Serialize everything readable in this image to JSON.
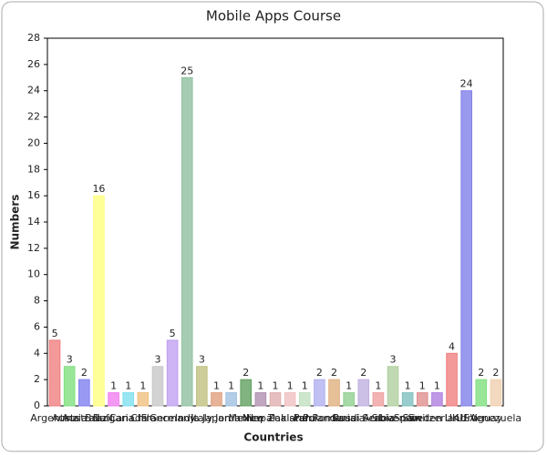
{
  "chart_data": {
    "type": "bar",
    "title": "Mobile Apps Course",
    "x_label": "Countries",
    "y_label": "Numbers",
    "categories": [
      "Argentina",
      "Austria",
      "Australia",
      "Brazil",
      "Bulgaria",
      "Canada",
      "Chile",
      "France",
      "Germany",
      "India",
      "Italy",
      "Japan",
      "Jordan",
      "Mexico",
      "Nepal",
      "New Zealand",
      "Pakistan",
      "Peru",
      "Poland",
      "Romania",
      "Russia",
      "Saudi Arabia",
      "Serbia",
      "Slovenia",
      "Spain",
      "Sweden",
      "Switzerland",
      "UK",
      "USA",
      "Uruguay",
      "Venezuela"
    ],
    "values": [
      5,
      3,
      2,
      16,
      1,
      1,
      1,
      3,
      5,
      25,
      3,
      1,
      1,
      2,
      1,
      1,
      1,
      1,
      2,
      2,
      1,
      2,
      1,
      3,
      1,
      1,
      1,
      4,
      24,
      2,
      2
    ],
    "colors": [
      "#f08080",
      "#80e080",
      "#8080f0",
      "#ffff80",
      "#f080f0",
      "#80e0f0",
      "#f0c080",
      "#c8c8c8",
      "#c0a0f0",
      "#90c0a0",
      "#c0c080",
      "#e0a080",
      "#a0c0e0",
      "#60a060",
      "#b090b0",
      "#e0b0b0",
      "#f0c0c0",
      "#c0e0c0",
      "#b0b0f0",
      "#e0b080",
      "#90d090",
      "#c0b0e0",
      "#f0a0a0",
      "#b0d0a0",
      "#80c0c0",
      "#e09090",
      "#b080e0",
      "#f08080",
      "#8080e8",
      "#80e080",
      "#f0d0b0"
    ],
    "ylim": [
      0,
      28
    ],
    "yticks": [
      0,
      2,
      4,
      6,
      8,
      10,
      12,
      14,
      16,
      18,
      20,
      22,
      24,
      26,
      28
    ]
  }
}
